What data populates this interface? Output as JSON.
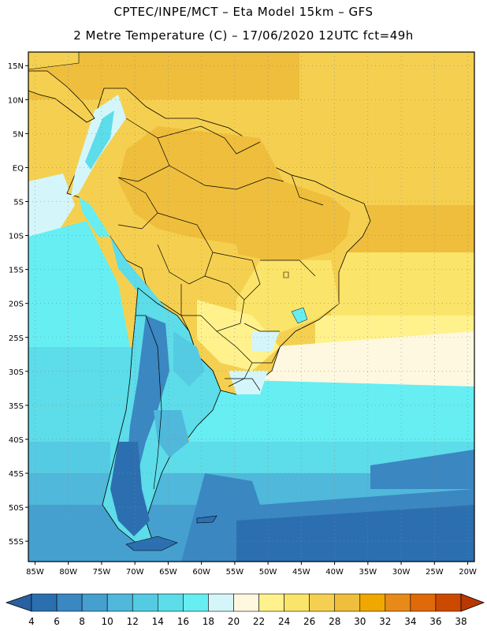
{
  "header": {
    "line1": "CPTEC/INPE/MCT –  Eta Model 15km – GFS",
    "line2": "2 Metre Temperature (C) – 17/06/2020 12UTC fct=49h"
  },
  "axes": {
    "lat_labels": [
      "15N",
      "10N",
      "5N",
      "EQ",
      "5S",
      "10S",
      "15S",
      "20S",
      "25S",
      "30S",
      "35S",
      "40S",
      "45S",
      "50S",
      "55S"
    ],
    "lat_values": [
      15,
      10,
      5,
      0,
      -5,
      -10,
      -15,
      -20,
      -25,
      -30,
      -35,
      -40,
      -45,
      -50,
      -55
    ],
    "lon_labels": [
      "85W",
      "80W",
      "75W",
      "70W",
      "65W",
      "60W",
      "55W",
      "50W",
      "45W",
      "40W",
      "35W",
      "30W",
      "25W",
      "20W"
    ],
    "lon_values": [
      -85,
      -80,
      -75,
      -70,
      -65,
      -60,
      -55,
      -50,
      -45,
      -40,
      -35,
      -30,
      -25,
      -20
    ],
    "lat_range": [
      -58,
      17
    ],
    "lon_range": [
      -86,
      -19
    ],
    "grid": true
  },
  "colorbar": {
    "labels": [
      "4",
      "6",
      "8",
      "10",
      "12",
      "14",
      "16",
      "18",
      "20",
      "22",
      "24",
      "26",
      "28",
      "30",
      "32",
      "34",
      "36",
      "38"
    ],
    "colors": [
      "#2c6fb0",
      "#3a87c2",
      "#45a0cf",
      "#4fb8db",
      "#55cbe3",
      "#5ddce9",
      "#66eef3",
      "#d4f6fb",
      "#fff8e0",
      "#fff28c",
      "#fbe46a",
      "#f5d050",
      "#efbe3c",
      "#f0a800",
      "#e88a1a",
      "#e06a0a",
      "#cc4a00"
    ],
    "low_arrow_color": "#2860a0",
    "high_arrow_color": "#b83800"
  }
}
